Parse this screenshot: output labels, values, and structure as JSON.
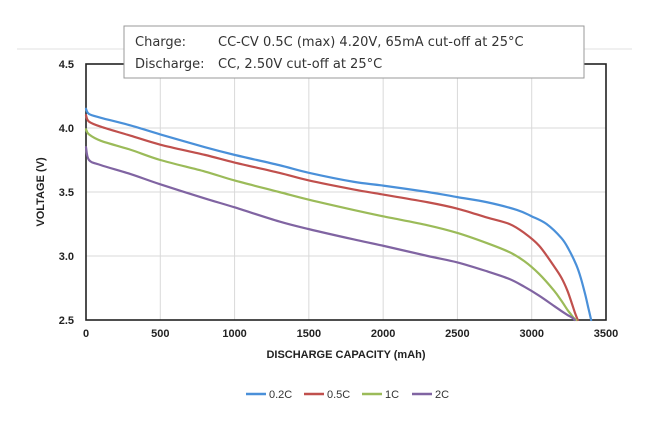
{
  "chart_data": {
    "type": "line",
    "title": "",
    "xlabel": "DISCHARGE CAPACITY (mAh)",
    "ylabel": "VOLTAGE (V)",
    "xlim": [
      0,
      3500
    ],
    "ylim": [
      2.5,
      4.5
    ],
    "xticks": [
      "0",
      "500",
      "1000",
      "1500",
      "2000",
      "2500",
      "3000",
      "3500"
    ],
    "yticks": [
      "2.5",
      "3.0",
      "3.5",
      "4.0",
      "4.5"
    ],
    "grid": true,
    "legend_position": "bottom",
    "annotation": {
      "line1_label": "Charge:",
      "line1_value": "CC-CV 0.5C (max) 4.20V, 65mA cut-off at 25°C",
      "line2_label": "Discharge:",
      "line2_value": "CC, 2.50V cut-off at 25°C"
    },
    "series": [
      {
        "name": "0.2C",
        "color": "#4a90d9",
        "x": [
          0,
          20,
          100,
          300,
          500,
          800,
          1000,
          1300,
          1500,
          1800,
          2000,
          2300,
          2500,
          2700,
          2900,
          3000,
          3100,
          3200,
          3250,
          3300,
          3330,
          3360,
          3380,
          3400
        ],
        "y": [
          4.15,
          4.11,
          4.08,
          4.02,
          3.95,
          3.85,
          3.79,
          3.71,
          3.65,
          3.58,
          3.55,
          3.5,
          3.46,
          3.42,
          3.36,
          3.31,
          3.25,
          3.14,
          3.05,
          2.93,
          2.83,
          2.7,
          2.6,
          2.5
        ]
      },
      {
        "name": "0.5C",
        "color": "#c0504d",
        "x": [
          0,
          20,
          100,
          300,
          500,
          800,
          1000,
          1300,
          1500,
          1800,
          2000,
          2300,
          2500,
          2700,
          2850,
          2950,
          3050,
          3150,
          3200,
          3240,
          3270,
          3290,
          3310
        ],
        "y": [
          4.1,
          4.05,
          4.01,
          3.94,
          3.87,
          3.79,
          3.73,
          3.65,
          3.59,
          3.52,
          3.48,
          3.42,
          3.37,
          3.3,
          3.25,
          3.18,
          3.08,
          2.92,
          2.83,
          2.73,
          2.63,
          2.56,
          2.5
        ]
      },
      {
        "name": "1C",
        "color": "#9bbb59",
        "x": [
          0,
          20,
          100,
          300,
          500,
          800,
          1000,
          1300,
          1500,
          1800,
          2000,
          2300,
          2500,
          2700,
          2850,
          2950,
          3050,
          3150,
          3200,
          3240,
          3260,
          3280,
          3300
        ],
        "y": [
          3.99,
          3.95,
          3.9,
          3.83,
          3.75,
          3.66,
          3.59,
          3.5,
          3.44,
          3.36,
          3.31,
          3.24,
          3.18,
          3.1,
          3.03,
          2.96,
          2.86,
          2.73,
          2.65,
          2.58,
          2.55,
          2.52,
          2.5
        ]
      },
      {
        "name": "2C",
        "color": "#8064a2",
        "x": [
          0,
          20,
          100,
          300,
          500,
          800,
          1000,
          1300,
          1500,
          1800,
          2000,
          2300,
          2500,
          2700,
          2850,
          2950,
          3050,
          3150,
          3200,
          3240,
          3270,
          3290
        ],
        "y": [
          3.85,
          3.75,
          3.71,
          3.64,
          3.56,
          3.45,
          3.38,
          3.27,
          3.21,
          3.13,
          3.08,
          3.0,
          2.95,
          2.88,
          2.82,
          2.76,
          2.69,
          2.61,
          2.57,
          2.54,
          2.52,
          2.5
        ]
      }
    ]
  }
}
